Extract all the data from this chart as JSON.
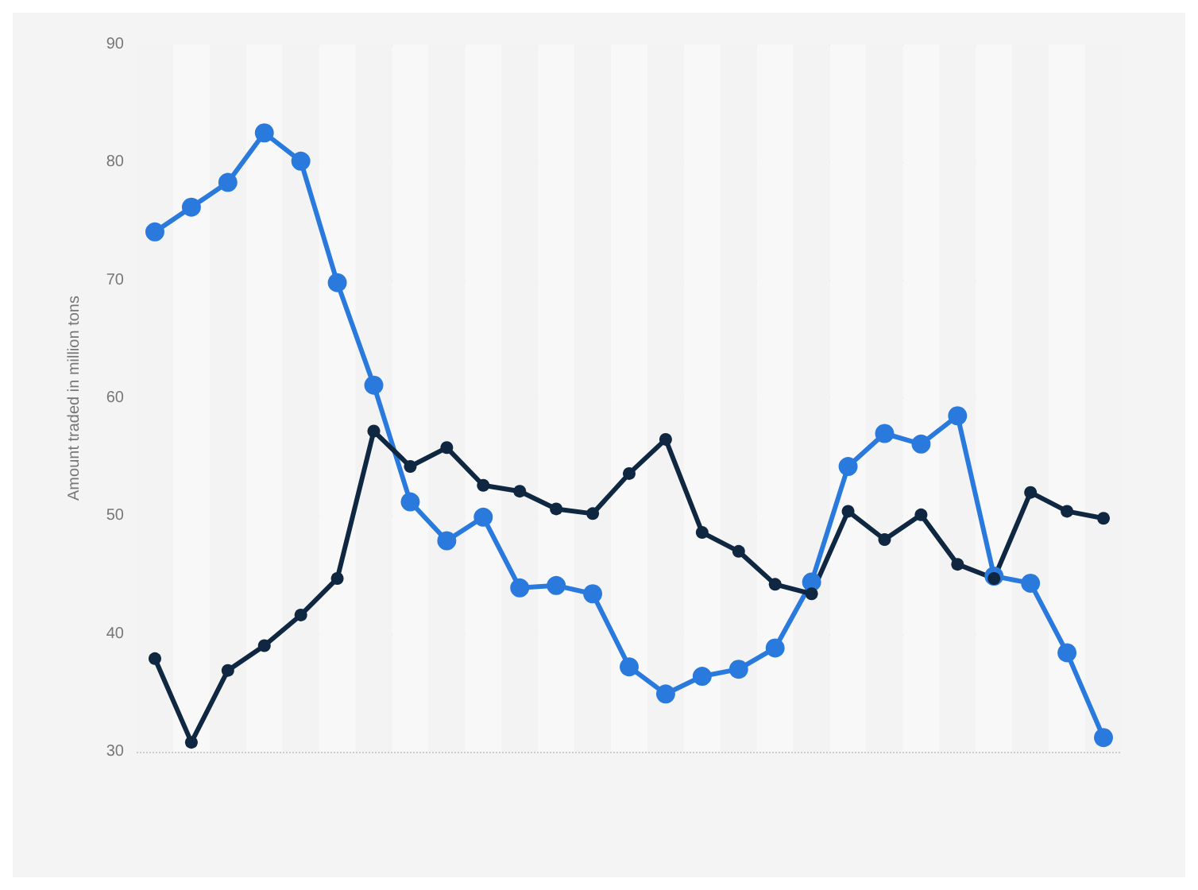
{
  "chart_data": {
    "type": "line",
    "ylabel": "Amount traded in million tons",
    "categories": [
      null,
      null,
      null,
      null,
      null,
      null,
      null,
      null,
      null,
      null,
      null,
      null,
      null,
      null,
      null,
      null,
      null,
      null,
      null,
      null,
      null,
      null,
      null,
      null,
      null,
      null,
      null
    ],
    "series": [
      {
        "color": "#2a7ade",
        "values": [
          74.1,
          76.2,
          78.3,
          82.5,
          80.1,
          69.8,
          61.1,
          51.2,
          47.9,
          49.9,
          43.9,
          44.1,
          43.4,
          37.2,
          34.9,
          36.4,
          37.0,
          38.8,
          44.4,
          54.2,
          57.0,
          56.1,
          58.5,
          44.9,
          44.3,
          38.4,
          31.2
        ]
      },
      {
        "color": "#0f2740",
        "values": [
          37.9,
          30.8,
          36.9,
          39.0,
          41.6,
          44.7,
          57.2,
          54.2,
          55.8,
          52.6,
          52.1,
          50.6,
          50.2,
          53.6,
          56.5,
          48.6,
          47.0,
          44.2,
          43.4,
          50.4,
          48.0,
          50.1,
          45.9,
          44.7,
          52.0,
          50.4,
          49.8
        ]
      }
    ],
    "ylim": [
      30,
      90
    ],
    "yticks": [
      30,
      40,
      50,
      60,
      70,
      80,
      90
    ],
    "grid": "y",
    "marker": "circle",
    "line_style": "solid",
    "tick_labels": "y"
  }
}
